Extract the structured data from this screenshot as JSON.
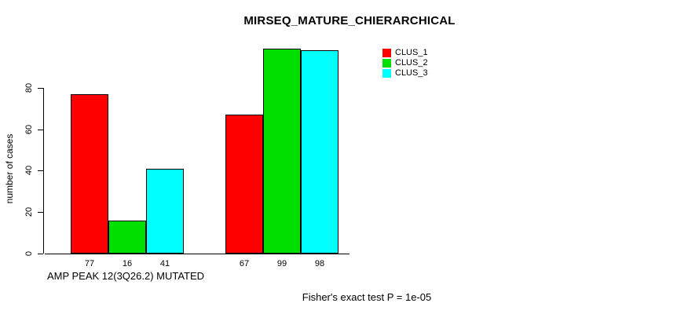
{
  "title": "MIRSEQ_MATURE_CHIERARCHICAL",
  "y_axis": {
    "label": "number of cases",
    "ticks": [
      0,
      20,
      40,
      60,
      80
    ]
  },
  "x_axis": {
    "group1_label": "AMP PEAK 12(3Q26.2) MUTATED",
    "group2_label": ""
  },
  "footnote": "Fisher's exact test P = 1e-05",
  "colors": {
    "clus_1": "#ff0000",
    "clus_2": "#00e000",
    "clus_3": "#00ffff",
    "axis": "#000000",
    "background": "#ffffff"
  },
  "chart_data": {
    "type": "bar",
    "title": "MIRSEQ_MATURE_CHIERARCHICAL",
    "xlabel": "AMP PEAK 12(3Q26.2) MUTATED",
    "ylabel": "number of cases",
    "ylim": [
      0,
      100
    ],
    "yticks": [
      0,
      20,
      40,
      60,
      80
    ],
    "grid": false,
    "legend_position": "top-right",
    "categories": [
      "AMP PEAK 12(3Q26.2) MUTATED",
      ""
    ],
    "series": [
      {
        "name": "CLUS_1",
        "color": "#ff0000",
        "values": [
          77,
          67
        ]
      },
      {
        "name": "CLUS_2",
        "color": "#00e000",
        "values": [
          16,
          99
        ]
      },
      {
        "name": "CLUS_3",
        "color": "#00ffff",
        "values": [
          41,
          98
        ]
      }
    ],
    "bar_value_labels": [
      [
        77,
        16,
        41
      ],
      [
        67,
        99,
        98
      ]
    ],
    "annotation": "Fisher's exact test P = 1e-05"
  }
}
